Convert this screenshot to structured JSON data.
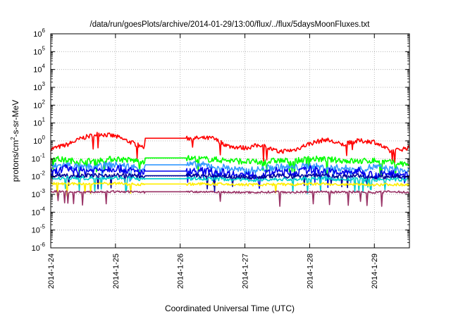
{
  "chart_data": {
    "type": "line",
    "title": "/data/run/goesPlots/archive/2014-01-29/13:00/flux/../flux/5daysMoonFluxes.txt",
    "xlabel": "Coordinated Universal Time (UTC)",
    "ylabel": "protons/cm²-s-sr-MeV",
    "ylabel_parts": {
      "before": "protons/cm",
      "sup": "2",
      "after": "-s-sr-MeV"
    },
    "yscale": "log",
    "ylim": [
      1e-06,
      1000000.0
    ],
    "xlim": [
      "2014-01-24",
      "2014-01-29 13:00"
    ],
    "grid": true,
    "legend": "none",
    "x_ticks": [
      "2014-1-24",
      "2014-1-25",
      "2014-1-26",
      "2014-1-27",
      "2014-1-28",
      "2014-1-29"
    ],
    "y_ticks": [
      {
        "base": "10",
        "exp": "-6"
      },
      {
        "base": "10",
        "exp": "-5"
      },
      {
        "base": "10",
        "exp": "-4"
      },
      {
        "base": "10",
        "exp": "-3"
      },
      {
        "base": "10",
        "exp": "-2"
      },
      {
        "base": "10",
        "exp": "-1"
      },
      {
        "base": "10",
        "exp": "0"
      },
      {
        "base": "10",
        "exp": "1"
      },
      {
        "base": "10",
        "exp": "2"
      },
      {
        "base": "10",
        "exp": "3"
      },
      {
        "base": "10",
        "exp": "4"
      },
      {
        "base": "10",
        "exp": "5"
      },
      {
        "base": "10",
        "exp": "6"
      }
    ],
    "x_days": [
      0,
      0.25,
      0.5,
      0.75,
      1.0,
      1.25,
      1.5,
      1.75,
      2.0,
      2.25,
      2.5,
      2.75,
      3.0,
      3.25,
      3.5,
      3.75,
      4.0,
      4.25,
      4.5,
      4.75,
      5.0,
      5.25,
      5.5
    ],
    "series": [
      {
        "color": "#ff0000",
        "noise": 0.13,
        "values": [
          0.35,
          0.6,
          1.5,
          2.5,
          1.8,
          0.8,
          0.35,
          0.3,
          1.4,
          1.4,
          1.4,
          0.5,
          0.4,
          0.6,
          0.25,
          0.3,
          0.7,
          1.2,
          0.6,
          1.0,
          0.9,
          0.25,
          0.4
        ],
        "flat": [
          [
            1.45,
            2.1,
            1.4
          ]
        ]
      },
      {
        "color": "#00ff00",
        "noise": 0.17,
        "values": [
          0.11,
          0.08,
          0.07,
          0.08,
          0.1,
          0.08,
          0.07,
          0.11,
          0.11,
          0.1,
          0.09,
          0.08,
          0.07,
          0.06,
          0.08,
          0.07,
          0.1,
          0.09,
          0.08,
          0.07,
          0.08,
          0.06,
          0.05
        ],
        "flat": [
          [
            1.45,
            2.1,
            0.11
          ]
        ]
      },
      {
        "color": "#3399ff",
        "noise": 0.2,
        "values": [
          0.035,
          0.045,
          0.03,
          0.04,
          0.045,
          0.035,
          0.025,
          0.045,
          0.045,
          0.045,
          0.04,
          0.03,
          0.02,
          0.025,
          0.035,
          0.03,
          0.04,
          0.03,
          0.03,
          0.025,
          0.035,
          0.025,
          0.02
        ],
        "flat": [
          [
            1.45,
            2.1,
            0.045
          ]
        ]
      },
      {
        "color": "#0000ee",
        "noise": 0.22,
        "values": [
          0.015,
          0.03,
          0.02,
          0.025,
          0.03,
          0.02,
          0.015,
          0.02,
          0.02,
          0.02,
          0.02,
          0.015,
          0.012,
          0.012,
          0.02,
          0.015,
          0.025,
          0.02,
          0.015,
          0.02,
          0.012,
          0.015,
          0.012
        ],
        "flat": [
          [
            1.45,
            2.1,
            0.02
          ]
        ]
      },
      {
        "color": "#000099",
        "noise": 0.12,
        "values": [
          0.012,
          0.012,
          0.011,
          0.012,
          0.012,
          0.011,
          0.01,
          0.011,
          0.011,
          0.011,
          0.011,
          0.01,
          0.009,
          0.009,
          0.011,
          0.01,
          0.012,
          0.011,
          0.01,
          0.011,
          0.009,
          0.01,
          0.009
        ],
        "flat": [
          [
            1.45,
            2.1,
            0.011
          ]
        ]
      },
      {
        "color": "#00cccc",
        "noise": 0.1,
        "values": [
          0.008,
          0.0085,
          0.008,
          0.0085,
          0.0085,
          0.008,
          0.0065,
          0.0075,
          0.0075,
          0.0075,
          0.0075,
          0.007,
          0.0065,
          0.0065,
          0.007,
          0.0068,
          0.008,
          0.0075,
          0.0068,
          0.007,
          0.0065,
          0.0068,
          0.0065
        ],
        "flat": [
          [
            1.45,
            2.1,
            0.0075
          ]
        ]
      },
      {
        "color": "#ffee00",
        "noise": 0.08,
        "values": [
          0.004,
          0.004,
          0.0038,
          0.004,
          0.004,
          0.0038,
          0.0035,
          0.0038,
          0.0038,
          0.0038,
          0.0038,
          0.0036,
          0.0035,
          0.0035,
          0.0036,
          0.0035,
          0.0038,
          0.0037,
          0.0035,
          0.0036,
          0.0035,
          0.0036,
          0.0035
        ],
        "flat": [
          [
            1.45,
            2.1,
            0.0038
          ]
        ]
      },
      {
        "color": "#993366",
        "noise": 0.06,
        "values": [
          0.0015,
          0.0014,
          0.0013,
          0.0014,
          0.0014,
          0.0014,
          0.0013,
          0.0014,
          0.0014,
          0.0014,
          0.0014,
          0.0013,
          0.0013,
          0.0013,
          0.0014,
          0.0013,
          0.0014,
          0.0014,
          0.0013,
          0.0014,
          0.0013,
          0.0014,
          0.0013
        ],
        "flat": [
          [
            1.45,
            2.1,
            0.0014
          ]
        ]
      }
    ]
  }
}
